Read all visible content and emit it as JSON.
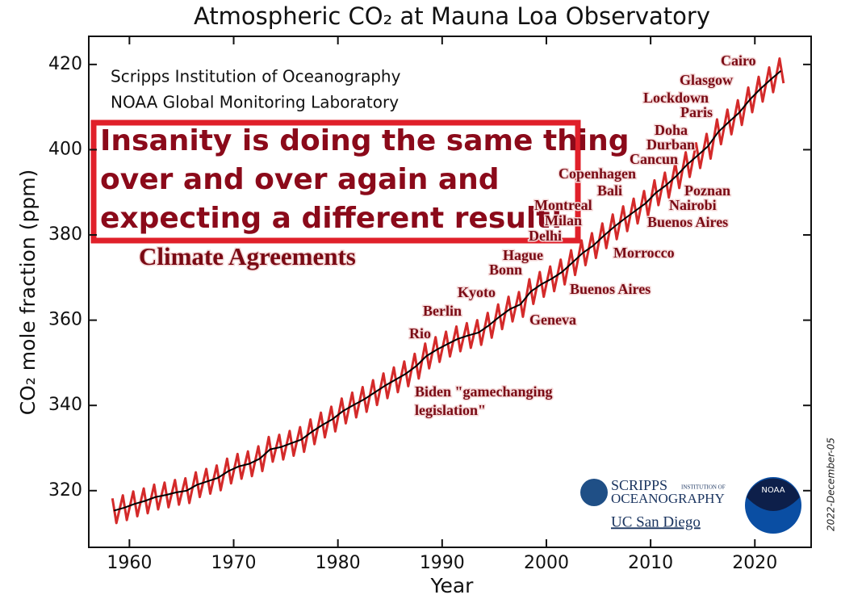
{
  "chart_data": {
    "type": "line",
    "title": "Atmospheric CO₂ at Mauna Loa Observatory",
    "x_label": "Year",
    "y_label": "CO₂ mole fraction (ppm)",
    "xlim": [
      1956.1,
      2025.4
    ],
    "ylim": [
      306.7,
      426.6
    ],
    "xticks": [
      1960,
      1970,
      1980,
      1990,
      2000,
      2010,
      2020
    ],
    "yticks": [
      320,
      340,
      360,
      380,
      400,
      420
    ],
    "credits": [
      "Scripps Institution of Oceanography",
      "NOAA Global Monitoring Laboratory"
    ],
    "quote": [
      "Insanity is doing the same thing",
      "over and over again and",
      "expecting a different result!"
    ],
    "heading": "Climate Agreements",
    "annotations": [
      "Cairo",
      "Glasgow",
      "Lockdown",
      "Paris",
      "Doha",
      "Durban",
      "Cancun",
      "Copenhagen",
      "Bali",
      "Poznan",
      "Montreal",
      "Nairobi",
      "Milan",
      "Buenos Aires",
      "Delhi",
      "Hague",
      "Morrocco",
      "Bonn",
      "Buenos Aires",
      "Kyoto",
      "Berlin",
      "Geneva",
      "Rio",
      "Biden \"gamechanging",
      "legislation\""
    ],
    "logos": [
      "SCRIPPS",
      "INSTITUTION OF",
      "OCEANOGRAPHY",
      "UC San Diego",
      "NOAA"
    ],
    "date": "2022-December-05",
    "series": [
      {
        "color": "#d42a2a",
        "x": [
          1958.37,
          1958.75,
          1959.37,
          1959.75,
          1960.37,
          1960.75,
          1961.37,
          1961.75,
          1962.37,
          1962.75,
          1963.37,
          1963.75,
          1964.37,
          1964.75,
          1965.37,
          1965.75,
          1966.37,
          1966.75,
          1967.37,
          1967.75,
          1968.37,
          1968.75,
          1969.37,
          1969.75,
          1970.37,
          1970.75,
          1971.37,
          1971.75,
          1972.37,
          1972.75,
          1973.37,
          1973.75,
          1974.37,
          1974.75,
          1975.37,
          1975.75,
          1976.37,
          1976.75,
          1977.37,
          1977.75,
          1978.37,
          1978.75,
          1979.37,
          1979.75,
          1980.37,
          1980.75,
          1981.37,
          1981.75,
          1982.37,
          1982.75,
          1983.37,
          1983.75,
          1984.37,
          1984.75,
          1985.37,
          1985.75,
          1986.37,
          1986.75,
          1987.37,
          1987.75,
          1988.37,
          1988.75,
          1989.37,
          1989.75,
          1990.37,
          1990.75,
          1991.37,
          1991.75,
          1992.37,
          1992.75,
          1993.37,
          1993.75,
          1994.37,
          1994.75,
          1995.37,
          1995.75,
          1996.37,
          1996.75,
          1997.37,
          1997.75,
          1998.37,
          1998.75,
          1999.37,
          1999.75,
          2000.37,
          2000.75,
          2001.37,
          2001.75,
          2002.37,
          2002.75,
          2003.37,
          2003.75,
          2004.37,
          2004.75,
          2005.37,
          2005.75,
          2006.37,
          2006.75,
          2007.37,
          2007.75,
          2008.37,
          2008.75,
          2009.37,
          2009.75,
          2010.37,
          2010.75,
          2011.37,
          2011.75,
          2012.37,
          2012.75,
          2013.37,
          2013.75,
          2014.37,
          2014.75,
          2015.37,
          2015.75,
          2016.37,
          2016.75,
          2017.37,
          2017.75,
          2018.37,
          2018.75,
          2019.37,
          2019.75,
          2020.37,
          2020.75,
          2021.37,
          2021.75,
          2022.37,
          2022.75
        ],
        "values": [
          318.2,
          312.4,
          318.9,
          313.1,
          319.8,
          314.0,
          320.5,
          314.7,
          321.4,
          315.6,
          321.9,
          316.1,
          322.5,
          316.7,
          322.9,
          317.1,
          324.3,
          318.5,
          325.1,
          319.3,
          325.9,
          320.1,
          327.5,
          321.7,
          328.6,
          322.8,
          329.2,
          323.4,
          330.4,
          324.6,
          332.6,
          326.8,
          333.1,
          327.3,
          334.0,
          328.2,
          334.9,
          329.1,
          336.7,
          330.9,
          338.3,
          332.5,
          339.7,
          333.9,
          341.6,
          335.8,
          343.0,
          337.2,
          344.3,
          338.5,
          345.9,
          340.1,
          347.5,
          341.7,
          348.9,
          343.1,
          350.3,
          344.5,
          352.1,
          346.3,
          354.5,
          348.7,
          356.0,
          350.2,
          357.3,
          351.5,
          358.5,
          352.7,
          359.3,
          353.5,
          360.0,
          354.2,
          361.7,
          355.9,
          363.7,
          357.9,
          365.5,
          359.7,
          366.6,
          360.8,
          369.6,
          363.8,
          371.3,
          365.5,
          372.6,
          366.8,
          374.2,
          368.4,
          376.4,
          370.6,
          378.7,
          372.9,
          380.4,
          374.6,
          382.7,
          376.9,
          384.8,
          379.0,
          386.7,
          380.9,
          388.5,
          382.7,
          390.3,
          384.5,
          392.8,
          387.0,
          394.6,
          388.8,
          396.8,
          391.0,
          399.4,
          393.6,
          401.5,
          395.7,
          403.7,
          397.9,
          407.1,
          401.3,
          409.4,
          403.6,
          411.6,
          405.8,
          414.6,
          408.8,
          417.1,
          411.3,
          419.3,
          413.5,
          421.4,
          415.6
        ]
      },
      {
        "color": "#000000",
        "x": [
          1958.5,
          1959.5,
          1960.5,
          1961.5,
          1962.5,
          1963.5,
          1964.5,
          1965.5,
          1966.5,
          1967.5,
          1968.5,
          1969.5,
          1970.5,
          1971.5,
          1972.5,
          1973.5,
          1974.5,
          1975.5,
          1976.5,
          1977.5,
          1978.5,
          1979.5,
          1980.5,
          1981.5,
          1982.5,
          1983.5,
          1984.5,
          1985.5,
          1986.5,
          1987.5,
          1988.5,
          1989.5,
          1990.5,
          1991.5,
          1992.5,
          1993.5,
          1994.5,
          1995.5,
          1996.5,
          1997.5,
          1998.5,
          1999.5,
          2000.5,
          2001.5,
          2002.5,
          2003.5,
          2004.5,
          2005.5,
          2006.5,
          2007.5,
          2008.5,
          2009.5,
          2010.5,
          2011.5,
          2012.5,
          2013.5,
          2014.5,
          2015.5,
          2016.5,
          2017.5,
          2018.5,
          2019.5,
          2020.5,
          2021.5,
          2022.5
        ],
        "values": [
          315.3,
          316.0,
          316.9,
          317.6,
          318.5,
          319.0,
          319.6,
          320.0,
          321.4,
          322.2,
          323.0,
          324.6,
          325.7,
          326.3,
          327.5,
          329.7,
          330.2,
          331.1,
          332.0,
          333.8,
          335.4,
          336.8,
          338.7,
          340.1,
          341.4,
          343.0,
          344.6,
          346.0,
          347.4,
          349.2,
          351.6,
          353.1,
          354.4,
          355.6,
          356.4,
          357.1,
          358.8,
          360.8,
          362.6,
          363.7,
          366.7,
          368.4,
          369.7,
          371.3,
          373.5,
          375.8,
          377.5,
          379.8,
          381.9,
          383.8,
          385.6,
          387.4,
          389.9,
          391.7,
          393.9,
          396.5,
          398.6,
          400.8,
          404.2,
          406.5,
          408.7,
          411.7,
          414.2,
          416.4,
          418.5
        ]
      }
    ]
  }
}
